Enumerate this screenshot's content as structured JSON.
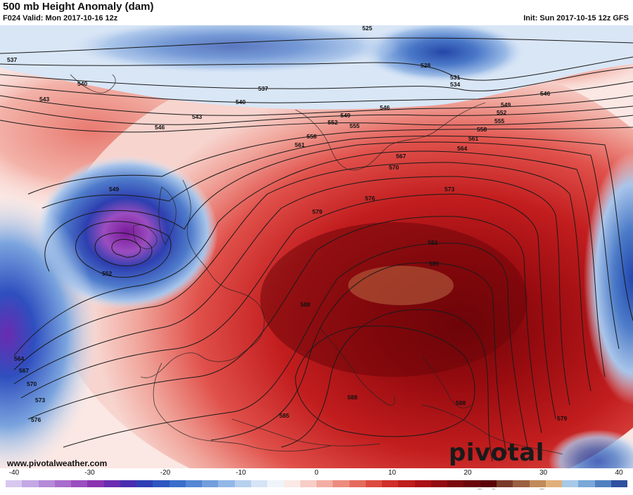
{
  "header": {
    "title": "500 mb Height Anomaly (dam)",
    "valid": "F024 Valid: Mon 2017-10-16 12z",
    "init": "Init: Sun 2017-10-15 12z GFS"
  },
  "footer": {
    "url": "www.pivotalweather.com",
    "logo": "pivotal weather"
  },
  "colorbar": {
    "ticks": [
      "-40",
      "-30",
      "-20",
      "-10",
      "0",
      "10",
      "20",
      "30",
      "40"
    ],
    "colors": [
      "#d9c7f0",
      "#c4a8e6",
      "#b48ad9",
      "#a86ccc",
      "#9b4dbf",
      "#8a32b0",
      "#6a2bb0",
      "#4a2cb0",
      "#2f3fb5",
      "#2d56c0",
      "#3a6ecb",
      "#5586d4",
      "#729edd",
      "#93b8e7",
      "#b6d0ef",
      "#d6e4f5",
      "#f0f4fa",
      "#fbe9e6",
      "#f7cdc6",
      "#f2aea3",
      "#ec8c7f",
      "#e46a5e",
      "#dc4a40",
      "#d02e2a",
      "#bf1c1c",
      "#aa1014",
      "#930b10",
      "#7d080c",
      "#6b050a",
      "#5a0207",
      "#7a3a2a",
      "#9a6040",
      "#c08a5a",
      "#e0b07a",
      "#a8c8e8",
      "#7aa8d8",
      "#5080c0",
      "#3050a0"
    ]
  },
  "map_labels": {
    "contours": [
      "525",
      "528",
      "531",
      "534",
      "537",
      "540",
      "543",
      "546",
      "549",
      "552",
      "555",
      "558",
      "561",
      "564",
      "567",
      "570",
      "573",
      "576",
      "579",
      "582",
      "585",
      "588"
    ]
  }
}
